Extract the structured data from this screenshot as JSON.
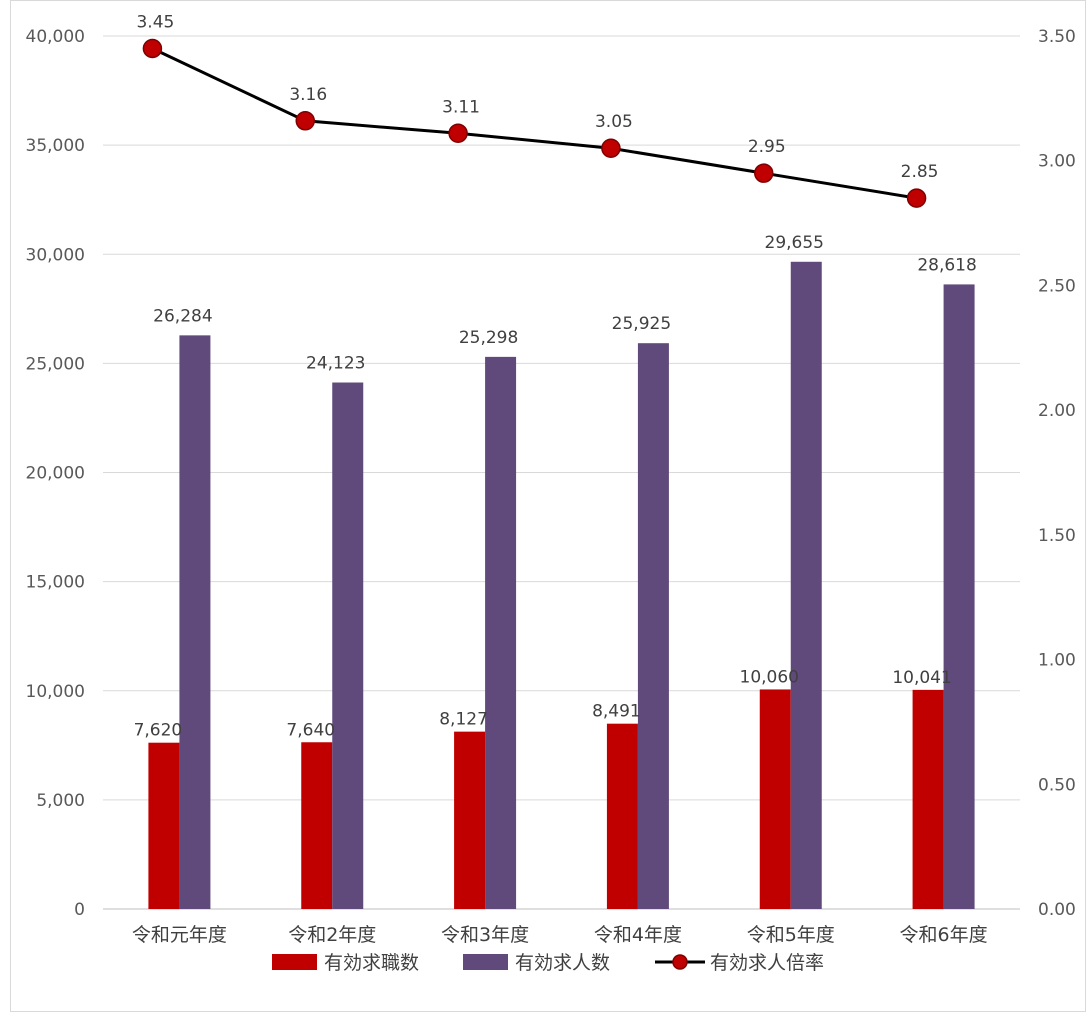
{
  "chart_data": {
    "type": "bar+line",
    "categories": [
      "令和元年度",
      "令和2年度",
      "令和3年度",
      "令和4年度",
      "令和5年度",
      "令和6年度"
    ],
    "series": [
      {
        "name": "有効求職数",
        "type": "bar",
        "axis": "left",
        "color": "#c00000",
        "values": [
          7620,
          7640,
          8127,
          8491,
          10060,
          10041
        ],
        "labels": [
          "7,620",
          "7,640",
          "8,127",
          "8,491",
          "10,060",
          "10,041"
        ]
      },
      {
        "name": "有効求人数",
        "type": "bar",
        "axis": "left",
        "color": "#604a7b",
        "values": [
          26284,
          24123,
          25298,
          25925,
          29655,
          28618
        ],
        "labels": [
          "26,284",
          "24,123",
          "25,298",
          "25,925",
          "29,655",
          "28,618"
        ]
      },
      {
        "name": "有効求人倍率",
        "type": "line",
        "axis": "right",
        "color": "#000000",
        "marker_color": "#c00000",
        "values": [
          3.45,
          3.16,
          3.11,
          3.05,
          2.95,
          2.85
        ],
        "labels": [
          "3.45",
          "3.16",
          "3.11",
          "3.05",
          "2.95",
          "2.85"
        ]
      }
    ],
    "y_left": {
      "min": 0,
      "max": 40000,
      "step": 5000,
      "tick_labels": [
        "0",
        "5,000",
        "10,000",
        "15,000",
        "20,000",
        "25,000",
        "30,000",
        "35,000",
        "40,000"
      ]
    },
    "y_right": {
      "min": 0,
      "max": 3.5,
      "step": 0.5,
      "tick_labels": [
        "0.00",
        "0.50",
        "1.00",
        "1.50",
        "2.00",
        "2.50",
        "3.00",
        "3.50"
      ]
    },
    "grid": true,
    "legend_position": "bottom"
  }
}
